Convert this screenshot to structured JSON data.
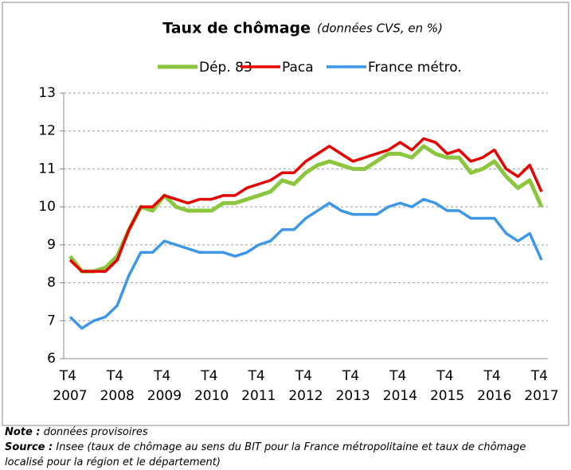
{
  "chart_data": {
    "type": "line",
    "title": "Taux de chômage",
    "subtitle": "(données CVS, en %)",
    "categories": [
      "T4 2007",
      null,
      null,
      null,
      "T4 2008",
      null,
      null,
      null,
      "T4 2009",
      null,
      null,
      null,
      "T4 2010",
      null,
      null,
      null,
      "T4 2011",
      null,
      null,
      null,
      "T4 2012",
      null,
      null,
      null,
      "T4 2013",
      null,
      null,
      null,
      "T4 2014",
      null,
      null,
      null,
      "T4 2015",
      null,
      null,
      null,
      "T4 2016",
      null,
      null,
      null,
      "T4 2017"
    ],
    "series": [
      {
        "name": "Dép. 83",
        "color": "#8cc63f",
        "values": [
          8.7,
          8.3,
          8.3,
          8.4,
          8.7,
          9.4,
          10.0,
          9.9,
          10.3,
          10.0,
          9.9,
          9.9,
          9.9,
          10.1,
          10.1,
          10.2,
          10.3,
          10.4,
          10.7,
          10.6,
          10.9,
          11.1,
          11.2,
          11.1,
          11.0,
          11.0,
          11.2,
          11.4,
          11.4,
          11.3,
          11.6,
          11.4,
          11.3,
          11.3,
          10.9,
          11.0,
          11.2,
          10.8,
          10.5,
          10.7,
          10.0
        ]
      },
      {
        "name": "Paca",
        "color": "#e60000",
        "values": [
          8.6,
          8.3,
          8.3,
          8.3,
          8.6,
          9.4,
          10.0,
          10.0,
          10.3,
          10.2,
          10.1,
          10.2,
          10.2,
          10.3,
          10.3,
          10.5,
          10.6,
          10.7,
          10.9,
          10.9,
          11.2,
          11.4,
          11.6,
          11.4,
          11.2,
          11.3,
          11.4,
          11.5,
          11.7,
          11.5,
          11.8,
          11.7,
          11.4,
          11.5,
          11.2,
          11.3,
          11.5,
          11.0,
          10.8,
          11.1,
          10.4
        ]
      },
      {
        "name": "France métro.",
        "color": "#3d97e8",
        "values": [
          7.1,
          6.8,
          7.0,
          7.1,
          7.4,
          8.2,
          8.8,
          8.8,
          9.1,
          9.0,
          8.9,
          8.8,
          8.8,
          8.8,
          8.7,
          8.8,
          9.0,
          9.1,
          9.4,
          9.4,
          9.7,
          9.9,
          10.1,
          9.9,
          9.8,
          9.8,
          9.8,
          10.0,
          10.1,
          10.0,
          10.2,
          10.1,
          9.9,
          9.9,
          9.7,
          9.7,
          9.7,
          9.3,
          9.1,
          9.3,
          8.6
        ]
      }
    ],
    "ylim": [
      6,
      13
    ],
    "yticks": [
      6,
      7,
      8,
      9,
      10,
      11,
      12,
      13
    ],
    "grid": true
  },
  "notes": [
    {
      "label": "Note :",
      "text": "données provisoires"
    },
    {
      "label": "Source :",
      "text": "Insee (taux de chômage au sens du BIT pour la France métropolitaine et taux de chômage localisé pour la région et le département)"
    }
  ]
}
